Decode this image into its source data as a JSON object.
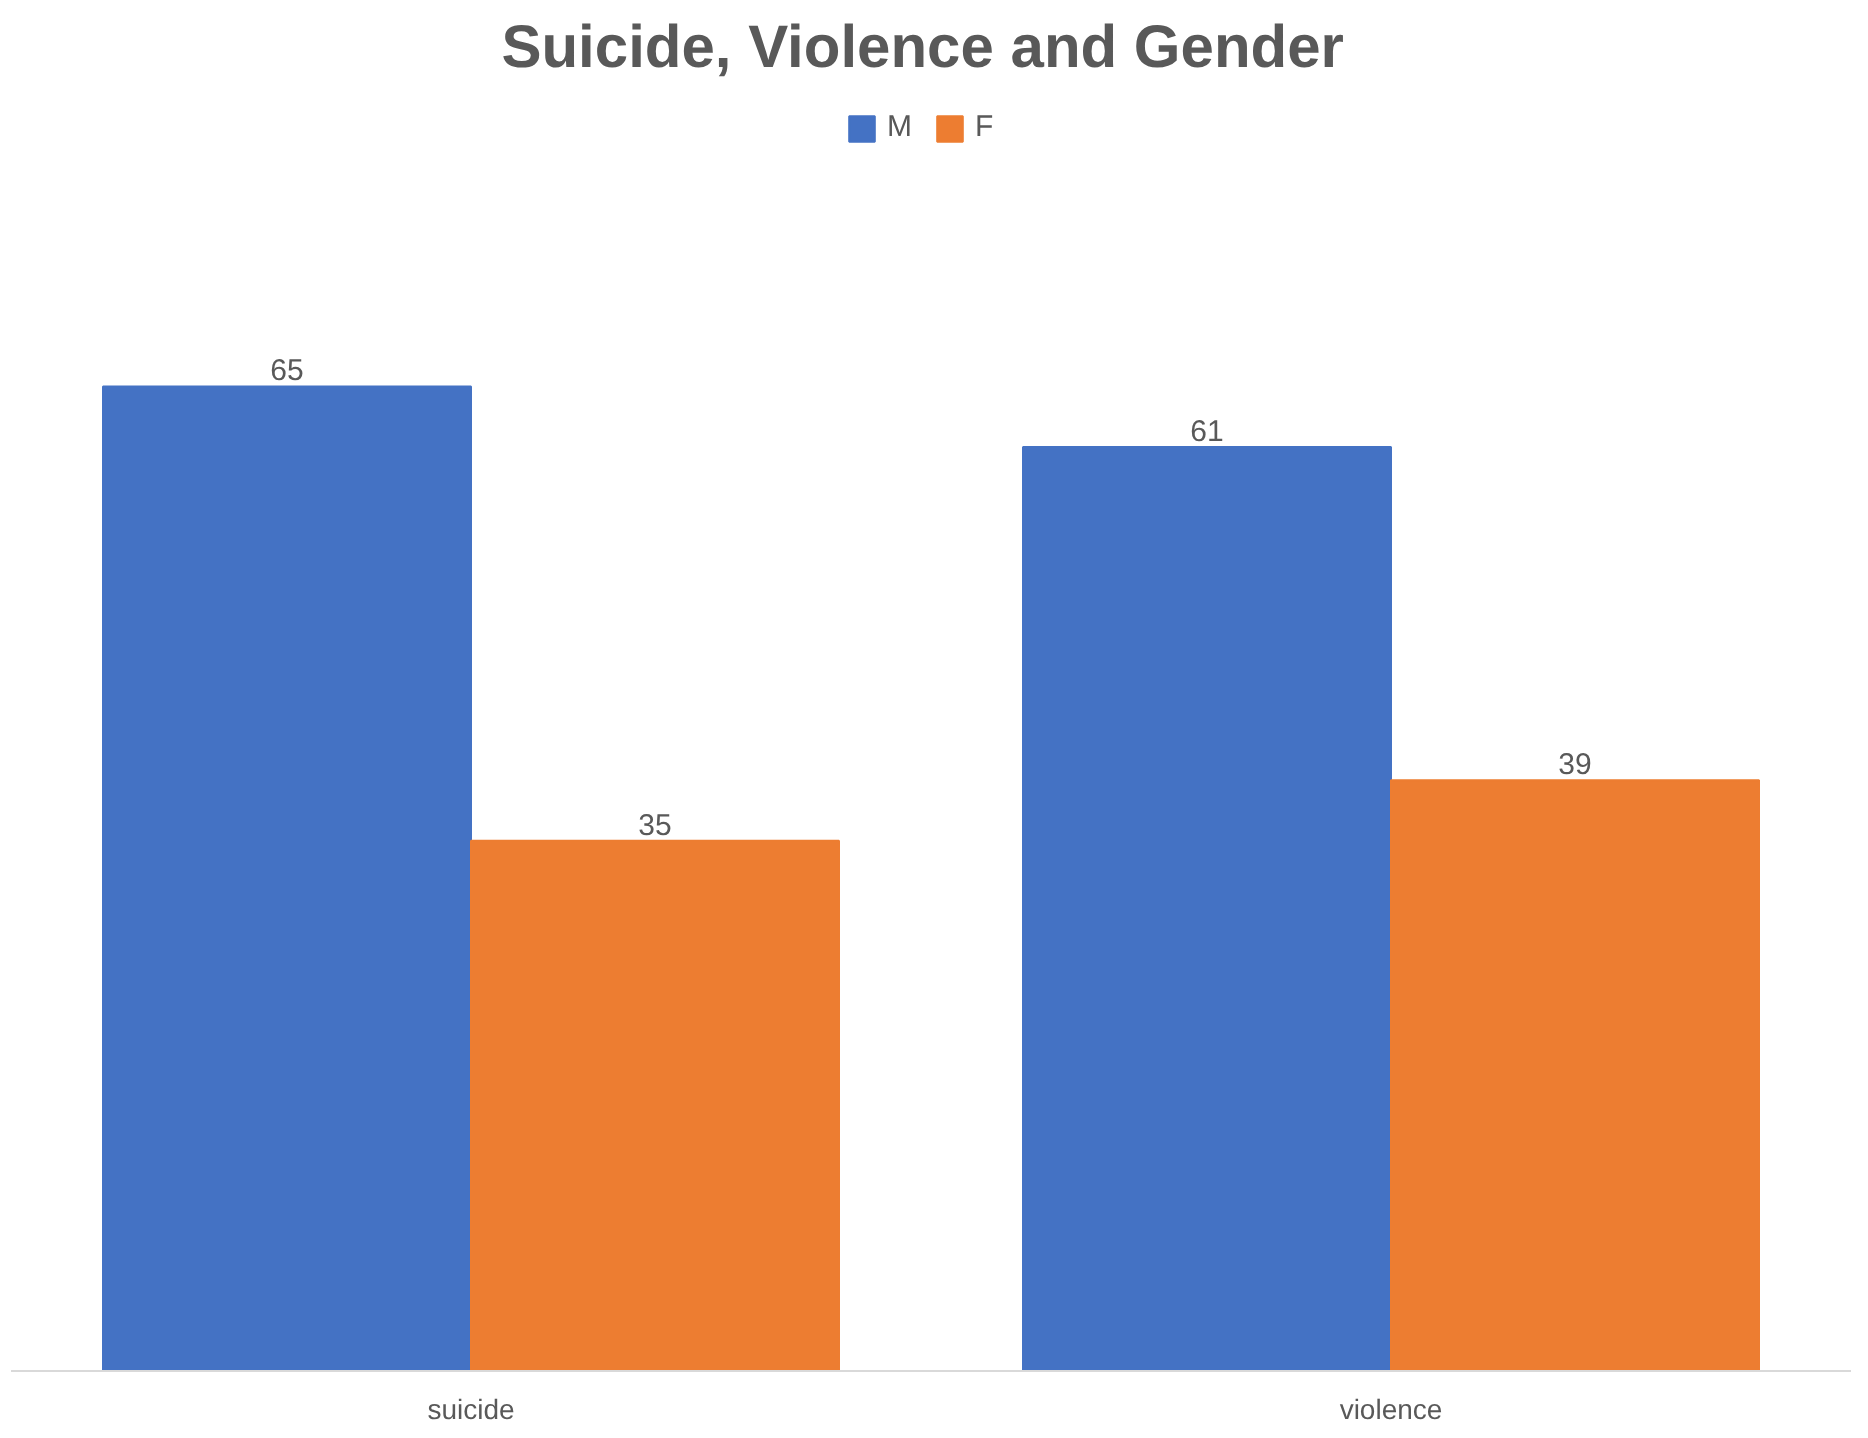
{
  "chart_data": {
    "type": "bar",
    "title": "Suicide,  Violence and Gender",
    "categories": [
      "suicide",
      "violence"
    ],
    "series": [
      {
        "name": "M",
        "color": "#4472c4",
        "values": [
          65,
          61
        ]
      },
      {
        "name": "F",
        "color": "#ed7d31",
        "values": [
          35,
          39
        ]
      }
    ],
    "data_labels": true,
    "legend": "top",
    "grid": false
  }
}
